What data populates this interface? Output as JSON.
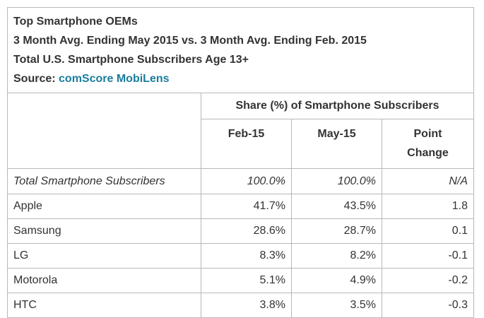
{
  "header": {
    "line1": "Top Smartphone OEMs",
    "line2": "3 Month Avg. Ending May 2015 vs. 3 Month Avg. Ending Feb. 2015",
    "line3": "Total U.S. Smartphone Subscribers Age 13+",
    "source_label": "Source:",
    "source_name": "comScore MobiLens"
  },
  "table": {
    "group_header": "Share (%) of Smartphone Subscribers",
    "columns": [
      "Feb-15",
      "May-15",
      "Point Change"
    ],
    "total_row": {
      "label": "Total Smartphone Subscribers",
      "feb": "100.0%",
      "may": "100.0%",
      "change": "N/A"
    },
    "rows": [
      {
        "label": "Apple",
        "feb": "41.7%",
        "may": "43.5%",
        "change": "1.8"
      },
      {
        "label": "Samsung",
        "feb": "28.6%",
        "may": "28.7%",
        "change": "0.1"
      },
      {
        "label": "LG",
        "feb": "8.3%",
        "may": "8.2%",
        "change": "-0.1"
      },
      {
        "label": "Motorola",
        "feb": "5.1%",
        "may": "4.9%",
        "change": "-0.2"
      },
      {
        "label": "HTC",
        "feb": "3.8%",
        "may": "3.5%",
        "change": "-0.3"
      }
    ]
  },
  "chart_data": {
    "type": "table",
    "title": "Top Smartphone OEMs",
    "categories": [
      "Total Smartphone Subscribers",
      "Apple",
      "Samsung",
      "LG",
      "Motorola",
      "HTC"
    ],
    "series": [
      {
        "name": "Feb-15",
        "values": [
          100.0,
          41.7,
          28.6,
          8.3,
          5.1,
          3.8
        ]
      },
      {
        "name": "May-15",
        "values": [
          100.0,
          43.5,
          28.7,
          8.2,
          4.9,
          3.5
        ]
      },
      {
        "name": "Point Change",
        "values": [
          null,
          1.8,
          0.1,
          -0.1,
          -0.2,
          -0.3
        ]
      }
    ]
  }
}
